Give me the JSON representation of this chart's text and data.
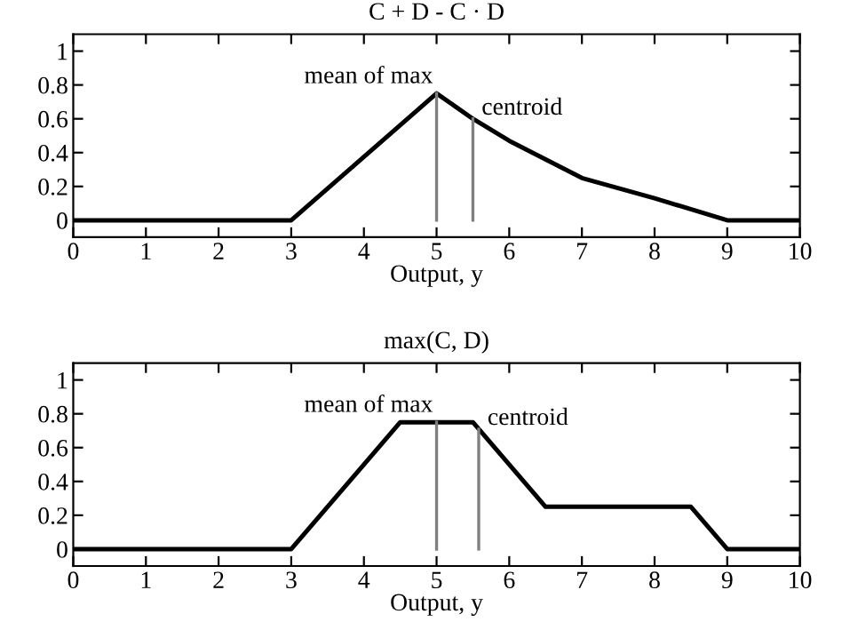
{
  "chart_data": [
    {
      "type": "line",
      "title": "C + D - C · D",
      "xlabel": "Output, y",
      "x": [
        0,
        3,
        5,
        5.5,
        6,
        7,
        8,
        9,
        10
      ],
      "series": [
        {
          "color": "#000000",
          "values": [
            0,
            0,
            0.75,
            0.6,
            0.47,
            0.25,
            0.13,
            0,
            0
          ]
        }
      ],
      "xlim": [
        0,
        10
      ],
      "xticks": [
        0,
        1,
        2,
        3,
        4,
        5,
        6,
        7,
        8,
        9,
        10
      ],
      "ylim": [
        -0.1,
        1.1
      ],
      "yticks": [
        0,
        0.2,
        0.4,
        0.6,
        0.8,
        1
      ],
      "ref_lines": [
        {
          "axis": "x",
          "value": 5,
          "label": "mean of max",
          "color": "#808080"
        },
        {
          "axis": "x",
          "value": 5.5,
          "label": "centroid",
          "color": "#808080"
        }
      ],
      "grid": false,
      "legend": false,
      "marker": "none",
      "line_style": "solid"
    },
    {
      "type": "line",
      "title": "max(C, D)",
      "xlabel": "Output, y",
      "x": [
        0,
        3,
        4.5,
        5.5,
        6.5,
        8.5,
        9,
        10
      ],
      "series": [
        {
          "color": "#000000",
          "values": [
            0,
            0,
            0.75,
            0.75,
            0.25,
            0.25,
            0,
            0
          ]
        }
      ],
      "xlim": [
        0,
        10
      ],
      "xticks": [
        0,
        1,
        2,
        3,
        4,
        5,
        6,
        7,
        8,
        9,
        10
      ],
      "ylim": [
        -0.1,
        1.1
      ],
      "yticks": [
        0,
        0.2,
        0.4,
        0.6,
        0.8,
        1
      ],
      "ref_lines": [
        {
          "axis": "x",
          "value": 5,
          "label": "mean of max",
          "color": "#808080"
        },
        {
          "axis": "x",
          "value": 5.58,
          "label": "centroid",
          "color": "#808080"
        }
      ],
      "grid": false,
      "legend": false,
      "marker": "none",
      "line_style": "solid"
    }
  ]
}
